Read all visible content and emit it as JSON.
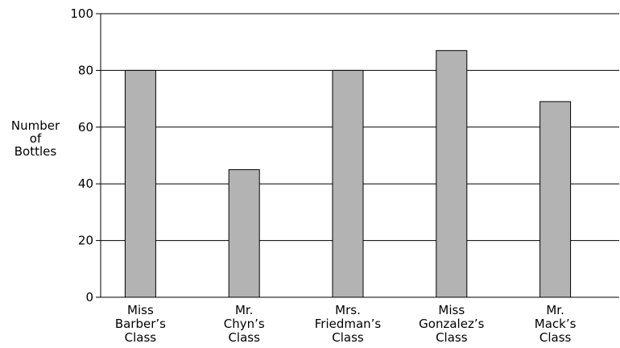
{
  "chart_data": {
    "type": "bar",
    "title": "",
    "xlabel": "",
    "ylabel_lines": [
      "Number",
      "of",
      "Bottles"
    ],
    "categories": [
      [
        "Miss",
        "Barber’s",
        "Class"
      ],
      [
        "Mr.",
        "Chyn’s",
        "Class"
      ],
      [
        "Mrs.",
        "Friedman’s",
        "Class"
      ],
      [
        "Miss",
        "Gonzalez’s",
        "Class"
      ],
      [
        "Mr.",
        "Mack’s",
        "Class"
      ]
    ],
    "values": [
      80,
      45,
      80,
      87,
      69
    ],
    "ylim": [
      0,
      100
    ],
    "yticks": [
      0,
      20,
      40,
      60,
      80,
      100
    ],
    "grid": true,
    "bar_color": "#b3b3b3",
    "edge_color": "#000000"
  }
}
